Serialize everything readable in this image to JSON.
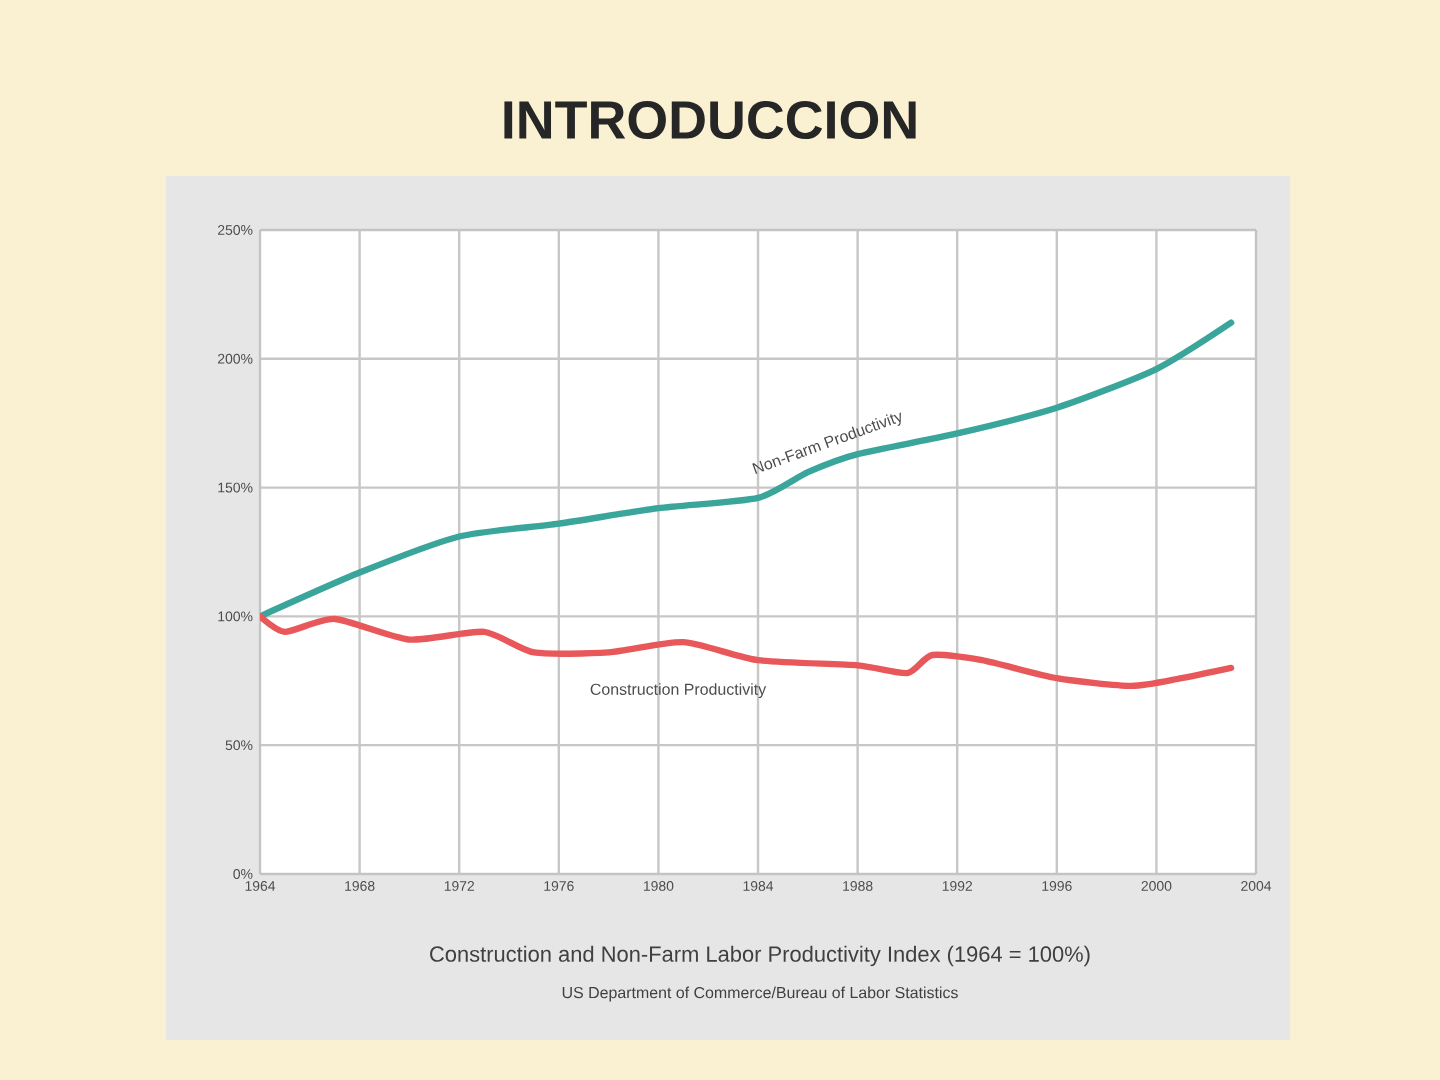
{
  "chart_data": {
    "type": "line",
    "title": "INTRODUCCION",
    "xlim": [
      1964,
      2004
    ],
    "xticks": [
      1964,
      1968,
      1972,
      1976,
      1980,
      1984,
      1988,
      1992,
      1996,
      2000,
      2004
    ],
    "ylim": [
      0,
      250
    ],
    "yticks": [
      {
        "value": 0,
        "label": "0%"
      },
      {
        "value": 50,
        "label": "50%"
      },
      {
        "value": 100,
        "label": "100%"
      },
      {
        "value": 150,
        "label": "150%"
      },
      {
        "value": 200,
        "label": "200%"
      },
      {
        "value": 250,
        "label": "250%"
      }
    ],
    "grid": true,
    "legend": false,
    "marker": "none",
    "line_style": "solid",
    "series": [
      {
        "name": "Non-Farm Productivity",
        "color": "#3aa59a",
        "x": [
          1964,
          1968,
          1972,
          1976,
          1980,
          1984,
          1986,
          1988,
          1992,
          1996,
          2000,
          2003
        ],
        "values": [
          100,
          117,
          131,
          136,
          142,
          146,
          156,
          163,
          171,
          181,
          196,
          214
        ]
      },
      {
        "name": "Construction Productivity",
        "color": "#e8575a",
        "x": [
          1964,
          1965,
          1967,
          1970,
          1973,
          1975,
          1978,
          1981,
          1984,
          1988,
          1990,
          1991,
          1993,
          1996,
          1999,
          2001,
          2003
        ],
        "values": [
          100,
          94,
          99,
          91,
          94,
          86,
          86,
          90,
          83,
          81,
          78,
          85,
          83,
          76,
          73,
          76,
          80
        ]
      }
    ],
    "annotations": [
      "Construction and Non-Farm Labor Productivity Index (1964 = 100%)",
      "US Department of Commerce/Bureau of Labor Statistics"
    ]
  }
}
